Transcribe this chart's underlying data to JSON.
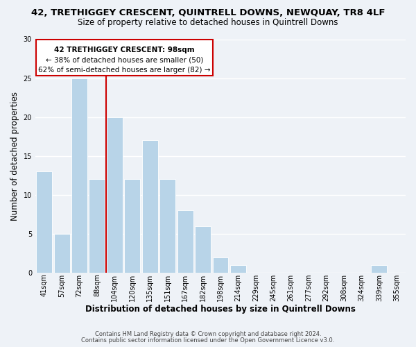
{
  "title_line1": "42, TRETHIGGEY CRESCENT, QUINTRELL DOWNS, NEWQUAY, TR8 4LF",
  "title_line2": "Size of property relative to detached houses in Quintrell Downs",
  "xlabel": "Distribution of detached houses by size in Quintrell Downs",
  "ylabel": "Number of detached properties",
  "footer_line1": "Contains HM Land Registry data © Crown copyright and database right 2024.",
  "footer_line2": "Contains public sector information licensed under the Open Government Licence v3.0.",
  "bin_labels": [
    "41sqm",
    "57sqm",
    "72sqm",
    "88sqm",
    "104sqm",
    "120sqm",
    "135sqm",
    "151sqm",
    "167sqm",
    "182sqm",
    "198sqm",
    "214sqm",
    "229sqm",
    "245sqm",
    "261sqm",
    "277sqm",
    "292sqm",
    "308sqm",
    "324sqm",
    "339sqm",
    "355sqm"
  ],
  "bar_heights": [
    13,
    5,
    25,
    12,
    20,
    12,
    17,
    12,
    8,
    6,
    2,
    1,
    0,
    0,
    0,
    0,
    0,
    0,
    0,
    1,
    0
  ],
  "bar_color": "#b8d4e8",
  "bar_edge_color": "#ffffff",
  "background_color": "#eef2f7",
  "grid_color": "#ffffff",
  "vline_x": 3.5,
  "annotation_text_line1": "42 TRETHIGGEY CRESCENT: 98sqm",
  "annotation_text_line2": "← 38% of detached houses are smaller (50)",
  "annotation_text_line3": "62% of semi-detached houses are larger (82) →",
  "annotation_box_color": "#ffffff",
  "annotation_border_color": "#cc0000",
  "vline_color": "#cc0000",
  "ylim": [
    0,
    30
  ],
  "title_fontsize": 9.5,
  "subtitle_fontsize": 8.5,
  "axis_label_fontsize": 8.5,
  "tick_fontsize": 7,
  "annotation_fontsize": 7.5,
  "footer_fontsize": 6
}
